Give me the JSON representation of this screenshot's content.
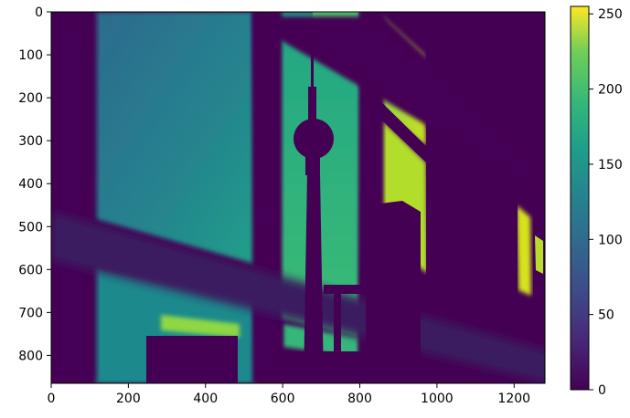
{
  "chart_data": {
    "type": "heatmap",
    "title": "",
    "xlabel": "",
    "ylabel": "",
    "image_width": 1280,
    "image_height": 865,
    "xlim": [
      0,
      1280
    ],
    "ylim": [
      865,
      0
    ],
    "x_ticks": [
      0,
      200,
      400,
      600,
      800,
      1000,
      1200
    ],
    "y_ticks": [
      0,
      100,
      200,
      300,
      400,
      500,
      600,
      700,
      800
    ],
    "colormap": "viridis",
    "colorbar": {
      "range": [
        0,
        255
      ],
      "ticks": [
        0,
        50,
        100,
        150,
        200,
        250
      ],
      "placement": "right"
    },
    "grid": false,
    "colors": {
      "viridis_low": "#440154",
      "viridis_mid": "#21918c",
      "viridis_high": "#fde725"
    }
  }
}
